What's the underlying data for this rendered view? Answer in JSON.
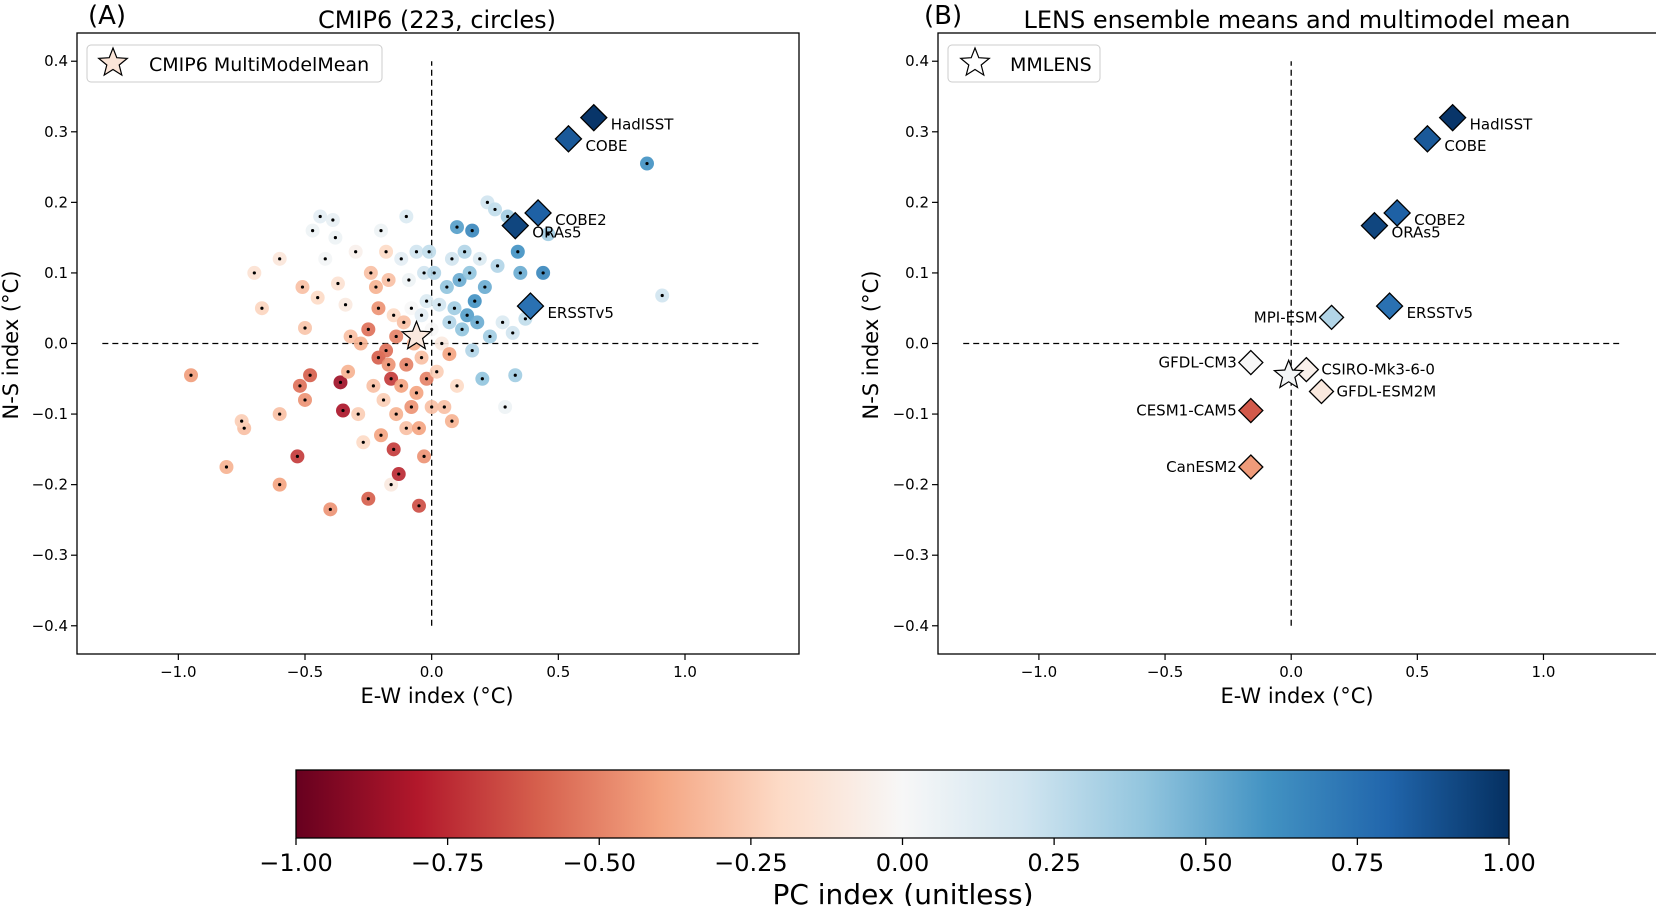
{
  "colorbar": {
    "label": "PC index (unitless)",
    "ticks": [
      "−1.00",
      "−0.75",
      "−0.50",
      "−0.25",
      "0.00",
      "0.25",
      "0.50",
      "0.75",
      "1.00"
    ],
    "tick_values": [
      -1.0,
      -0.75,
      -0.5,
      -0.25,
      0.0,
      0.25,
      0.5,
      0.75,
      1.0
    ],
    "colormap": "RdBu",
    "range": [
      -1.0,
      1.0
    ]
  },
  "chart_data": [
    {
      "type": "scatter",
      "panel_label": "(A)",
      "title": "CMIP6 (223, circles)",
      "xlabel": "E-W index (°C)",
      "ylabel": "N-S index (°C)",
      "xlim": [
        -1.4,
        1.45
      ],
      "ylim": [
        -0.44,
        0.44
      ],
      "xticks": [
        -1.0,
        -0.5,
        0.0,
        0.5,
        1.0
      ],
      "xtick_labels": [
        "−1.0",
        "−0.5",
        "0.0",
        "0.5",
        "1.0"
      ],
      "yticks": [
        -0.4,
        -0.3,
        -0.2,
        -0.1,
        0.0,
        0.1,
        0.2,
        0.3,
        0.4
      ],
      "ytick_labels": [
        "−0.4",
        "−0.3",
        "−0.2",
        "−0.1",
        "0.0",
        "0.1",
        "0.2",
        "0.3",
        "0.4"
      ],
      "hline": {
        "y": 0.0,
        "xrange": [
          -1.3,
          1.3
        ],
        "style": "dashed"
      },
      "vline": {
        "x": 0.0,
        "yrange": [
          -0.4,
          0.4
        ],
        "style": "dashed"
      },
      "legend": {
        "label": "CMIP6 MultiModelMean",
        "marker": "star",
        "position": "top-left"
      },
      "mean_marker": {
        "name": "CMIP6 MultiModelMean",
        "x": -0.06,
        "y": 0.01,
        "pc": -0.1
      },
      "observations": [
        {
          "name": "HadISST",
          "x": 0.64,
          "y": 0.32,
          "pc": 0.98
        },
        {
          "name": "COBE",
          "x": 0.54,
          "y": 0.29,
          "pc": 0.85
        },
        {
          "name": "COBE2",
          "x": 0.42,
          "y": 0.185,
          "pc": 0.82
        },
        {
          "name": "ORAs5",
          "x": 0.33,
          "y": 0.167,
          "pc": 0.92
        },
        {
          "name": "ERSSTv5",
          "x": 0.39,
          "y": 0.053,
          "pc": 0.75
        }
      ],
      "models": [
        {
          "x": -0.95,
          "y": -0.045,
          "pc": -0.42
        },
        {
          "x": -0.81,
          "y": -0.175,
          "pc": -0.35
        },
        {
          "x": -0.74,
          "y": -0.12,
          "pc": -0.3
        },
        {
          "x": -0.75,
          "y": -0.11,
          "pc": -0.25
        },
        {
          "x": -0.7,
          "y": 0.1,
          "pc": -0.15
        },
        {
          "x": -0.67,
          "y": 0.05,
          "pc": -0.22
        },
        {
          "x": -0.6,
          "y": 0.12,
          "pc": -0.12
        },
        {
          "x": -0.6,
          "y": -0.1,
          "pc": -0.3
        },
        {
          "x": -0.6,
          "y": -0.2,
          "pc": -0.4
        },
        {
          "x": -0.53,
          "y": -0.16,
          "pc": -0.7
        },
        {
          "x": -0.52,
          "y": -0.06,
          "pc": -0.55
        },
        {
          "x": -0.51,
          "y": 0.08,
          "pc": -0.3
        },
        {
          "x": -0.5,
          "y": 0.022,
          "pc": -0.28
        },
        {
          "x": -0.5,
          "y": -0.08,
          "pc": -0.45
        },
        {
          "x": -0.48,
          "y": -0.045,
          "pc": -0.6
        },
        {
          "x": -0.47,
          "y": 0.16,
          "pc": 0.05
        },
        {
          "x": -0.45,
          "y": 0.065,
          "pc": -0.2
        },
        {
          "x": -0.44,
          "y": 0.18,
          "pc": 0.1
        },
        {
          "x": -0.42,
          "y": 0.12,
          "pc": 0.02
        },
        {
          "x": -0.4,
          "y": -0.235,
          "pc": -0.45
        },
        {
          "x": -0.39,
          "y": 0.175,
          "pc": 0.08
        },
        {
          "x": -0.38,
          "y": 0.15,
          "pc": 0.05
        },
        {
          "x": -0.37,
          "y": 0.085,
          "pc": -0.15
        },
        {
          "x": -0.36,
          "y": -0.055,
          "pc": -0.85
        },
        {
          "x": -0.35,
          "y": -0.095,
          "pc": -0.82
        },
        {
          "x": -0.34,
          "y": 0.055,
          "pc": -0.1
        },
        {
          "x": -0.33,
          "y": -0.04,
          "pc": -0.35
        },
        {
          "x": -0.32,
          "y": 0.01,
          "pc": -0.3
        },
        {
          "x": -0.3,
          "y": 0.13,
          "pc": -0.05
        },
        {
          "x": -0.29,
          "y": -0.1,
          "pc": -0.25
        },
        {
          "x": -0.28,
          "y": 0.0,
          "pc": -0.35
        },
        {
          "x": -0.27,
          "y": -0.14,
          "pc": -0.2
        },
        {
          "x": -0.25,
          "y": -0.22,
          "pc": -0.6
        },
        {
          "x": -0.25,
          "y": 0.02,
          "pc": -0.55
        },
        {
          "x": -0.24,
          "y": 0.1,
          "pc": -0.3
        },
        {
          "x": -0.23,
          "y": -0.06,
          "pc": -0.3
        },
        {
          "x": -0.22,
          "y": 0.08,
          "pc": -0.35
        },
        {
          "x": -0.21,
          "y": -0.02,
          "pc": -0.6
        },
        {
          "x": -0.21,
          "y": 0.05,
          "pc": -0.45
        },
        {
          "x": -0.2,
          "y": 0.16,
          "pc": 0.05
        },
        {
          "x": -0.2,
          "y": -0.13,
          "pc": -0.4
        },
        {
          "x": -0.19,
          "y": -0.08,
          "pc": -0.25
        },
        {
          "x": -0.18,
          "y": -0.01,
          "pc": -0.55
        },
        {
          "x": -0.18,
          "y": 0.13,
          "pc": -0.2
        },
        {
          "x": -0.17,
          "y": -0.03,
          "pc": -0.45
        },
        {
          "x": -0.17,
          "y": 0.09,
          "pc": -0.3
        },
        {
          "x": -0.16,
          "y": -0.2,
          "pc": -0.1
        },
        {
          "x": -0.16,
          "y": -0.05,
          "pc": -0.7
        },
        {
          "x": -0.15,
          "y": -0.15,
          "pc": -0.7
        },
        {
          "x": -0.15,
          "y": 0.04,
          "pc": -0.2
        },
        {
          "x": -0.14,
          "y": -0.1,
          "pc": -0.35
        },
        {
          "x": -0.14,
          "y": 0.01,
          "pc": -0.5
        },
        {
          "x": -0.13,
          "y": -0.185,
          "pc": -0.75
        },
        {
          "x": -0.12,
          "y": 0.12,
          "pc": 0.1
        },
        {
          "x": -0.12,
          "y": -0.06,
          "pc": -0.4
        },
        {
          "x": -0.11,
          "y": 0.03,
          "pc": -0.3
        },
        {
          "x": -0.1,
          "y": 0.18,
          "pc": 0.15
        },
        {
          "x": -0.1,
          "y": -0.03,
          "pc": -0.5
        },
        {
          "x": -0.1,
          "y": -0.12,
          "pc": -0.3
        },
        {
          "x": -0.09,
          "y": 0.09,
          "pc": 0.05
        },
        {
          "x": -0.08,
          "y": -0.09,
          "pc": -0.45
        },
        {
          "x": -0.08,
          "y": 0.05,
          "pc": 0.0
        },
        {
          "x": -0.07,
          "y": 0.0,
          "pc": -0.35
        },
        {
          "x": -0.06,
          "y": -0.07,
          "pc": -0.4
        },
        {
          "x": -0.06,
          "y": 0.13,
          "pc": 0.2
        },
        {
          "x": -0.05,
          "y": -0.23,
          "pc": -0.65
        },
        {
          "x": -0.05,
          "y": -0.12,
          "pc": -0.4
        },
        {
          "x": -0.04,
          "y": 0.04,
          "pc": 0.1
        },
        {
          "x": -0.04,
          "y": -0.02,
          "pc": -0.3
        },
        {
          "x": -0.03,
          "y": 0.1,
          "pc": 0.2
        },
        {
          "x": -0.03,
          "y": -0.16,
          "pc": -0.45
        },
        {
          "x": -0.02,
          "y": 0.06,
          "pc": 0.15
        },
        {
          "x": -0.02,
          "y": -0.05,
          "pc": -0.5
        },
        {
          "x": -0.01,
          "y": 0.13,
          "pc": 0.25
        },
        {
          "x": 0.0,
          "y": -0.09,
          "pc": -0.3
        },
        {
          "x": 0.0,
          "y": 0.02,
          "pc": 0.0
        },
        {
          "x": 0.01,
          "y": 0.1,
          "pc": 0.3
        },
        {
          "x": 0.02,
          "y": -0.04,
          "pc": -0.25
        },
        {
          "x": 0.03,
          "y": 0.055,
          "pc": 0.2
        },
        {
          "x": 0.04,
          "y": 0.0,
          "pc": -0.1
        },
        {
          "x": 0.05,
          "y": -0.09,
          "pc": -0.3
        },
        {
          "x": 0.06,
          "y": 0.08,
          "pc": 0.4
        },
        {
          "x": 0.07,
          "y": 0.03,
          "pc": 0.3
        },
        {
          "x": 0.07,
          "y": -0.015,
          "pc": -0.4
        },
        {
          "x": 0.08,
          "y": 0.12,
          "pc": 0.2
        },
        {
          "x": 0.08,
          "y": -0.11,
          "pc": -0.35
        },
        {
          "x": 0.09,
          "y": 0.05,
          "pc": 0.35
        },
        {
          "x": 0.1,
          "y": 0.165,
          "pc": 0.55
        },
        {
          "x": 0.1,
          "y": -0.06,
          "pc": -0.2
        },
        {
          "x": 0.11,
          "y": 0.09,
          "pc": 0.5
        },
        {
          "x": 0.12,
          "y": 0.02,
          "pc": 0.4
        },
        {
          "x": 0.13,
          "y": 0.13,
          "pc": 0.3
        },
        {
          "x": 0.14,
          "y": 0.04,
          "pc": 0.55
        },
        {
          "x": 0.15,
          "y": 0.1,
          "pc": 0.4
        },
        {
          "x": 0.16,
          "y": 0.16,
          "pc": 0.65
        },
        {
          "x": 0.16,
          "y": -0.01,
          "pc": 0.3
        },
        {
          "x": 0.17,
          "y": 0.06,
          "pc": 0.6
        },
        {
          "x": 0.18,
          "y": 0.03,
          "pc": 0.5
        },
        {
          "x": 0.19,
          "y": 0.12,
          "pc": 0.15
        },
        {
          "x": 0.2,
          "y": -0.05,
          "pc": 0.4
        },
        {
          "x": 0.21,
          "y": 0.08,
          "pc": 0.5
        },
        {
          "x": 0.22,
          "y": 0.2,
          "pc": 0.2
        },
        {
          "x": 0.23,
          "y": 0.01,
          "pc": 0.35
        },
        {
          "x": 0.25,
          "y": 0.19,
          "pc": 0.25
        },
        {
          "x": 0.26,
          "y": 0.11,
          "pc": 0.3
        },
        {
          "x": 0.28,
          "y": 0.03,
          "pc": 0.15
        },
        {
          "x": 0.29,
          "y": -0.09,
          "pc": 0.05
        },
        {
          "x": 0.3,
          "y": 0.18,
          "pc": 0.35
        },
        {
          "x": 0.32,
          "y": 0.015,
          "pc": 0.2
        },
        {
          "x": 0.33,
          "y": -0.045,
          "pc": 0.35
        },
        {
          "x": 0.34,
          "y": 0.13,
          "pc": 0.6
        },
        {
          "x": 0.35,
          "y": 0.1,
          "pc": 0.5
        },
        {
          "x": 0.37,
          "y": 0.035,
          "pc": 0.25
        },
        {
          "x": 0.44,
          "y": 0.1,
          "pc": 0.65
        },
        {
          "x": 0.46,
          "y": 0.155,
          "pc": 0.35
        },
        {
          "x": 0.85,
          "y": 0.255,
          "pc": 0.6
        },
        {
          "x": 0.91,
          "y": 0.068,
          "pc": 0.2
        }
      ]
    },
    {
      "type": "scatter",
      "panel_label": "(B)",
      "title": "LENS ensemble means and multimodel mean",
      "xlabel": "E-W index (°C)",
      "ylabel": "N-S index (°C)",
      "xlim": [
        -1.4,
        1.45
      ],
      "ylim": [
        -0.44,
        0.44
      ],
      "xticks": [
        -1.0,
        -0.5,
        0.0,
        0.5,
        1.0
      ],
      "xtick_labels": [
        "−1.0",
        "−0.5",
        "0.0",
        "0.5",
        "1.0"
      ],
      "yticks": [
        -0.4,
        -0.3,
        -0.2,
        -0.1,
        0.0,
        0.1,
        0.2,
        0.3,
        0.4
      ],
      "ytick_labels": [
        "−0.4",
        "−0.3",
        "−0.2",
        "−0.1",
        "0.0",
        "0.1",
        "0.2",
        "0.3",
        "0.4"
      ],
      "hline": {
        "y": 0.0,
        "xrange": [
          -1.3,
          1.3
        ],
        "style": "dashed"
      },
      "vline": {
        "x": 0.0,
        "yrange": [
          -0.4,
          0.4
        ],
        "style": "dashed"
      },
      "legend": {
        "label": "MMLENS",
        "marker": "star",
        "position": "top-left"
      },
      "mean_marker": {
        "name": "MMLENS",
        "x": -0.01,
        "y": -0.045,
        "pc": 0.02
      },
      "observations": [
        {
          "name": "HadISST",
          "x": 0.64,
          "y": 0.32,
          "pc": 0.98
        },
        {
          "name": "COBE",
          "x": 0.54,
          "y": 0.29,
          "pc": 0.85
        },
        {
          "name": "COBE2",
          "x": 0.42,
          "y": 0.185,
          "pc": 0.82
        },
        {
          "name": "ORAs5",
          "x": 0.33,
          "y": 0.167,
          "pc": 0.92
        },
        {
          "name": "ERSSTv5",
          "x": 0.39,
          "y": 0.053,
          "pc": 0.75
        }
      ],
      "models": [
        {
          "name": "MPI-ESM",
          "x": 0.16,
          "y": 0.037,
          "pc": 0.3,
          "label_side": "left"
        },
        {
          "name": "GFDL-CM3",
          "x": -0.16,
          "y": -0.027,
          "pc": 0.0,
          "label_side": "left"
        },
        {
          "name": "CSIRO-Mk3-6-0",
          "x": 0.06,
          "y": -0.037,
          "pc": -0.05,
          "label_side": "right"
        },
        {
          "name": "GFDL-ESM2M",
          "x": 0.12,
          "y": -0.068,
          "pc": -0.1,
          "label_side": "right"
        },
        {
          "name": "CESM1-CAM5",
          "x": -0.16,
          "y": -0.095,
          "pc": -0.62,
          "label_side": "left"
        },
        {
          "name": "CanESM2",
          "x": -0.16,
          "y": -0.175,
          "pc": -0.43,
          "label_side": "left"
        }
      ]
    }
  ]
}
